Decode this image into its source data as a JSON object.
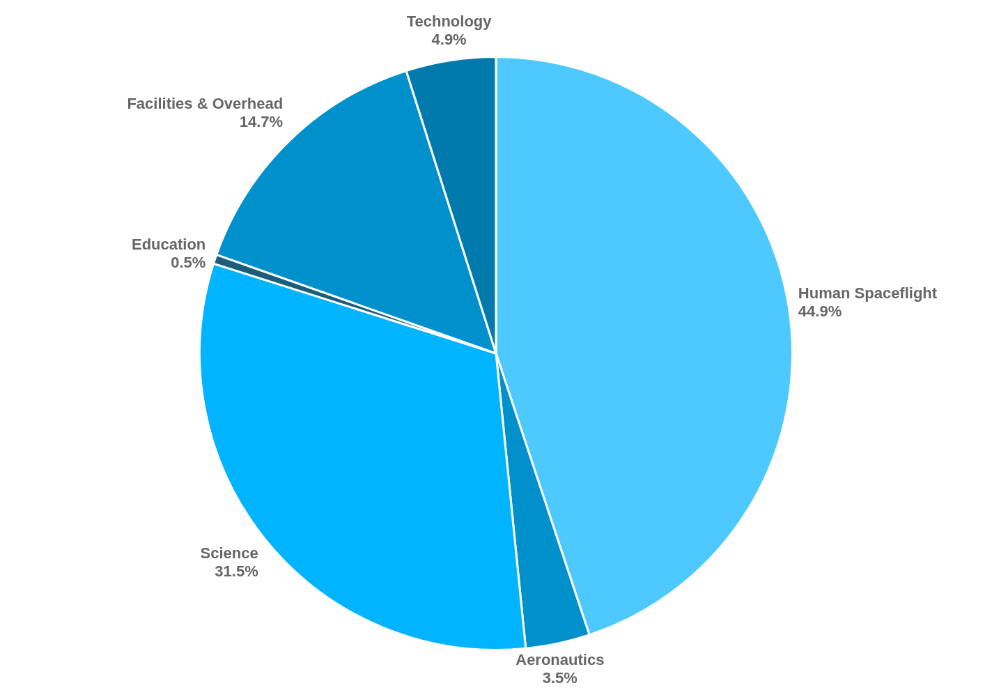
{
  "chart_data": {
    "type": "pie",
    "categories": [
      "Human Spaceflight",
      "Aeronautics",
      "Science",
      "Education",
      "Facilities & Overhead",
      "Technology"
    ],
    "values": [
      44.9,
      3.5,
      31.5,
      0.5,
      14.7,
      4.9
    ],
    "value_labels": [
      "44.9%",
      "3.5%",
      "31.5%",
      "0.5%",
      "14.7%",
      "4.9%"
    ],
    "colors": [
      "#4dc9ff",
      "#0091cd",
      "#00b4ff",
      "#1b5e7b",
      "#0090cc",
      "#007aad"
    ],
    "legend": false
  }
}
